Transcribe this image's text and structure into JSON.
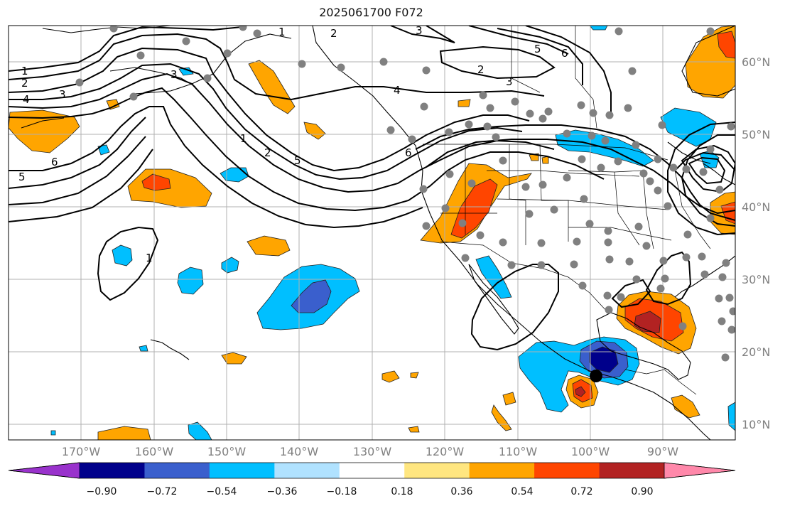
{
  "title": "2025061700 F072",
  "map": {
    "projection": "PlateCarree",
    "lon_range": [
      -182,
      -81
    ],
    "lat_range": [
      8,
      65
    ],
    "gridlines": true,
    "lat_labels": [
      "60°N",
      "50°N",
      "40°N",
      "30°N",
      "20°N",
      "10°N"
    ],
    "lon_labels": [
      "170°W",
      "160°W",
      "150°W",
      "140°W",
      "130°W",
      "120°W",
      "110°W",
      "100°W",
      "90°W"
    ],
    "marker": {
      "name": "storm-center",
      "lon": -98.3,
      "lat": 16.7,
      "color": "#000000"
    },
    "station_dot_color": "#808080",
    "contour_labels": [
      "1",
      "2",
      "3",
      "4",
      "5",
      "6"
    ]
  },
  "colorbar": {
    "ticks": [
      "−0.90",
      "−0.72",
      "−0.54",
      "−0.36",
      "−0.18",
      "0.18",
      "0.36",
      "0.54",
      "0.72",
      "0.90"
    ],
    "colors": [
      "#9932cc",
      "#00008b",
      "#3a5fcd",
      "#00bfff",
      "#b0e2ff",
      "#ffffff",
      "#ffe680",
      "#ffa500",
      "#ff4500",
      "#b22222",
      "#ff88aa"
    ]
  }
}
